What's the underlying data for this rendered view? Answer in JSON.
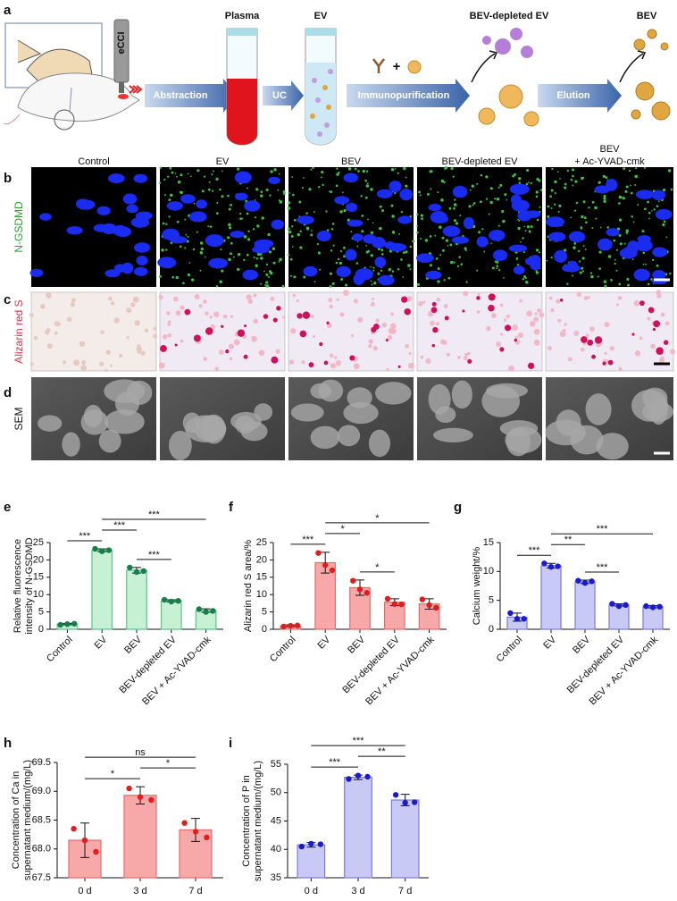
{
  "schematic": {
    "label": "a",
    "device": "eCCI",
    "steps": [
      "Abstraction",
      "UC",
      "Immunopurification",
      "Elution"
    ],
    "tubes": [
      "Plasma",
      "EV"
    ],
    "plus": "+",
    "products": [
      "BEV-depleted EV",
      "BEV"
    ]
  },
  "image_grid": {
    "columns": [
      [
        "Control"
      ],
      [
        "EV"
      ],
      [
        "BEV"
      ],
      [
        "BEV-depleted EV"
      ],
      [
        "BEV",
        "+ Ac-YVAD-cmk"
      ]
    ],
    "rows": [
      {
        "label": "b",
        "name": "N-GSDMD"
      },
      {
        "label": "c",
        "name": "Alizarin red S"
      },
      {
        "label": "d",
        "name": "SEM"
      }
    ]
  },
  "chart_data": [
    {
      "type": "bar",
      "panel": "e",
      "ylabel": [
        "Relative fluorescence",
        "intensity of N-GSDMD"
      ],
      "categories": [
        "Control",
        "EV",
        "BEV",
        "BEV-depleted EV",
        "BEV + Ac-YVAD-cmk"
      ],
      "values": [
        1.5,
        22.8,
        17,
        8.2,
        5.4
      ],
      "errors": [
        0.2,
        0.4,
        0.8,
        0.3,
        0.5
      ],
      "points": [
        [
          1.3,
          1.5,
          1.6
        ],
        [
          23.2,
          22.5,
          22.8
        ],
        [
          17.8,
          16.5,
          16.8
        ],
        [
          8.5,
          8.0,
          8.2
        ],
        [
          5.8,
          5.0,
          5.3
        ]
      ],
      "color": "#c6f1d3",
      "edge_color": "#5cc28a",
      "point_color": "#16804a",
      "ylim": [
        0,
        25
      ],
      "yticks": [
        0,
        5,
        10,
        15,
        20,
        25
      ],
      "significance": [
        {
          "pair": [
            0,
            1
          ],
          "label": "***"
        },
        {
          "pair": [
            1,
            2
          ],
          "label": "***"
        },
        {
          "pair": [
            2,
            3
          ],
          "label": "***"
        },
        {
          "pair": [
            1,
            4
          ],
          "label": "***"
        }
      ]
    },
    {
      "type": "bar",
      "panel": "f",
      "ylabel": [
        "Alizarin red S area/%"
      ],
      "categories": [
        "Control",
        "EV",
        "BEV",
        "BEV-depleted EV",
        "BEV + Ac-YVAD-cmk"
      ],
      "values": [
        1.0,
        19.2,
        12,
        7.8,
        7.3
      ],
      "errors": [
        0.3,
        3,
        2.2,
        1,
        1.5
      ],
      "points": [
        [
          0.8,
          1.0,
          1.1
        ],
        [
          22,
          18.5,
          17
        ],
        [
          14,
          11.5,
          10.5
        ],
        [
          8.8,
          7.3,
          7.2
        ],
        [
          8.6,
          7.0,
          6.2
        ]
      ],
      "color": "#f7a8a8",
      "edge_color": "#e86a6a",
      "point_color": "#e01e1e",
      "ylim": [
        0,
        25
      ],
      "yticks": [
        0,
        5,
        10,
        15,
        20,
        25
      ],
      "significance": [
        {
          "pair": [
            0,
            1
          ],
          "label": "***"
        },
        {
          "pair": [
            1,
            2
          ],
          "label": "*"
        },
        {
          "pair": [
            2,
            3
          ],
          "label": "*"
        },
        {
          "pair": [
            1,
            4
          ],
          "label": "*"
        }
      ]
    },
    {
      "type": "bar",
      "panel": "g",
      "ylabel": [
        "Calcium weight/%"
      ],
      "categories": [
        "Control",
        "EV",
        "BEV",
        "BEV-depleted EV",
        "BEV + Ac-YVAD-cmk"
      ],
      "values": [
        2.1,
        11,
        8.2,
        4.2,
        3.9
      ],
      "errors": [
        0.7,
        0.4,
        0.3,
        0.2,
        0.2
      ],
      "points": [
        [
          2.8,
          1.8,
          1.8
        ],
        [
          11.4,
          10.8,
          10.9
        ],
        [
          8.4,
          8.0,
          8.3
        ],
        [
          4.4,
          4.0,
          4.2
        ],
        [
          4.0,
          3.8,
          3.9
        ]
      ],
      "color": "#c9c9f5",
      "edge_color": "#7a7ae0",
      "point_color": "#1a1ad0",
      "ylim": [
        0,
        15
      ],
      "yticks": [
        0,
        5,
        10,
        15
      ],
      "significance": [
        {
          "pair": [
            0,
            1
          ],
          "label": "***"
        },
        {
          "pair": [
            1,
            2
          ],
          "label": "**"
        },
        {
          "pair": [
            2,
            3
          ],
          "label": "***"
        },
        {
          "pair": [
            1,
            4
          ],
          "label": "***"
        }
      ]
    },
    {
      "type": "bar",
      "panel": "h",
      "ylabel": [
        "Concentration of Ca in",
        "supernatant medium/(mg/L)"
      ],
      "categories": [
        "0 d",
        "3 d",
        "7 d"
      ],
      "values": [
        68.15,
        68.93,
        68.33
      ],
      "errors": [
        0.3,
        0.15,
        0.2
      ],
      "points": [
        [
          68.35,
          68.15,
          67.95
        ],
        [
          69.05,
          68.9,
          68.85
        ],
        [
          68.45,
          68.3,
          68.2
        ]
      ],
      "color": "#f7a8a8",
      "edge_color": "#e86a6a",
      "point_color": "#e01e1e",
      "ylim": [
        67.5,
        69.5
      ],
      "yticks": [
        67.5,
        {
          "value": 68,
          "label": "68.0"
        },
        68.5,
        {
          "value": 69,
          "label": "69.0"
        },
        69.5
      ],
      "significance": [
        {
          "pair": [
            0,
            1
          ],
          "label": "*"
        },
        {
          "pair": [
            1,
            2
          ],
          "label": "*"
        },
        {
          "pair": [
            0,
            2
          ],
          "label": "ns"
        }
      ]
    },
    {
      "type": "bar",
      "panel": "i",
      "ylabel": [
        "Concentration of P in",
        "supernatant medium/(mg/L)"
      ],
      "categories": [
        "0 d",
        "3 d",
        "7 d"
      ],
      "values": [
        40.8,
        52.7,
        48.7
      ],
      "errors": [
        0.4,
        0.4,
        1
      ],
      "points": [
        [
          40.5,
          41.0,
          40.9
        ],
        [
          52.4,
          53.0,
          52.8
        ],
        [
          49.6,
          48.2,
          48.3
        ]
      ],
      "color": "#c9c9f5",
      "edge_color": "#7a7ae0",
      "point_color": "#1a1ad0",
      "ylim": [
        35,
        55
      ],
      "yticks": [
        35,
        40,
        45,
        50,
        55
      ],
      "significance": [
        {
          "pair": [
            0,
            1
          ],
          "label": "***"
        },
        {
          "pair": [
            1,
            2
          ],
          "label": "**"
        },
        {
          "pair": [
            0,
            2
          ],
          "label": "***"
        }
      ]
    }
  ]
}
